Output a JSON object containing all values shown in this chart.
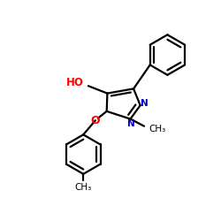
{
  "bg_color": "#ffffff",
  "bond_color": "#000000",
  "N_color": "#0000cd",
  "O_color": "#ff0000",
  "label_HO": "HO",
  "label_N": "N",
  "label_O": "O",
  "label_CH3_N": "CH₃",
  "label_CH3_tol": "CH₃",
  "figsize": [
    2.5,
    2.5
  ],
  "dpi": 100,
  "lw": 1.6
}
